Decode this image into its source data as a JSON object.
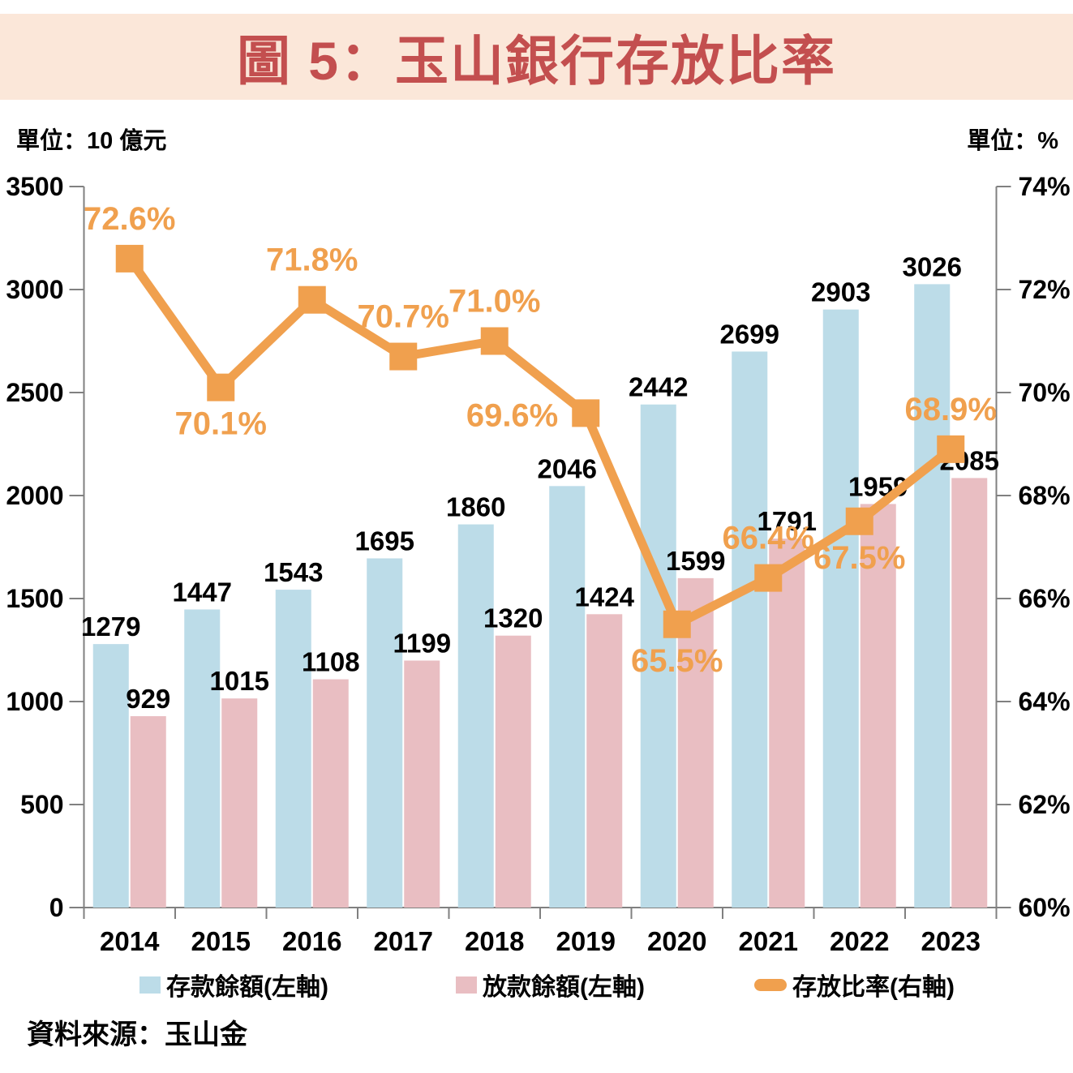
{
  "header": {
    "title": "圖 5：玉山銀行存放比率"
  },
  "units": {
    "left": "單位：10 億元",
    "right": "單位：%"
  },
  "source": "資料來源：玉山金",
  "legend": [
    {
      "label": "存款餘額(左軸)",
      "swatch": "deposit-square"
    },
    {
      "label": "放款餘額(左軸)",
      "swatch": "loan-square"
    },
    {
      "label": "存放比率(右軸)",
      "swatch": "ratio-line"
    }
  ],
  "colors": {
    "deposit_bar": "#BCDCE8",
    "loan_bar": "#E9BEC2",
    "ratio_line": "#F0A04E",
    "title_text": "#C34F4F",
    "banner_bg": "#FBE7D9",
    "axis_line": "#808080",
    "label_text": "#000000"
  },
  "chart_data": {
    "type": "bar",
    "subtype": "dual-axis bar + line combo",
    "title": "圖 5：玉山銀行存放比率",
    "categories": [
      "2014",
      "2015",
      "2016",
      "2017",
      "2018",
      "2019",
      "2020",
      "2021",
      "2022",
      "2023"
    ],
    "series": [
      {
        "name": "存款餘額(左軸)",
        "type": "bar",
        "axis": "left",
        "values": [
          1279,
          1447,
          1543,
          1695,
          1860,
          2046,
          2442,
          2699,
          2903,
          3026
        ]
      },
      {
        "name": "放款餘額(左軸)",
        "type": "bar",
        "axis": "left",
        "values": [
          929,
          1015,
          1108,
          1199,
          1320,
          1424,
          1599,
          1791,
          1959,
          2085
        ]
      },
      {
        "name": "存放比率(右軸)",
        "type": "line",
        "axis": "right",
        "values": [
          72.6,
          70.1,
          71.8,
          70.7,
          71.0,
          69.6,
          65.5,
          66.4,
          67.5,
          68.9
        ],
        "labels": [
          "72.6%",
          "70.1%",
          "71.8%",
          "70.7%",
          "71.0%",
          "69.6%",
          "65.5%",
          "66.4%",
          "67.5%",
          "68.9%"
        ],
        "label_positions": [
          "above",
          "below",
          "above",
          "above",
          "above",
          "left",
          "below",
          "above",
          "below",
          "above"
        ]
      }
    ],
    "left_axis": {
      "min": 0,
      "max": 3500,
      "step": 500,
      "unit": "10 億元",
      "tick_labels": [
        "0",
        "500",
        "1000",
        "1500",
        "2000",
        "2500",
        "3000",
        "3500"
      ]
    },
    "right_axis": {
      "min": 60,
      "max": 74,
      "step": 2,
      "unit": "%",
      "tick_labels": [
        "60%",
        "62%",
        "64%",
        "66%",
        "68%",
        "70%",
        "72%",
        "74%"
      ]
    },
    "grid": false,
    "legend_position": "bottom"
  }
}
